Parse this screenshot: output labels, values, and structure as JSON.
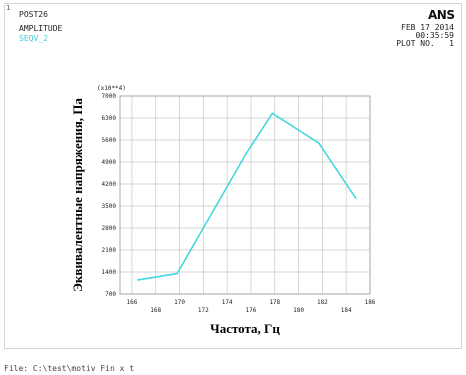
{
  "window": {
    "number": "1"
  },
  "header": {
    "program": "POST26",
    "plot_kind": "AMPLITUDE",
    "variable": "SEQV_2",
    "logo": "ANS",
    "date": "FEB 17 2014",
    "time": "00:35:59",
    "plot_no": "PLOT NO.   1"
  },
  "footer": {
    "file": "File: C:\\test\\motiv Fin x t"
  },
  "colors": {
    "series": "#47d6dd",
    "grid": "#c8c8c8",
    "text": "#222222",
    "variable": "#47c9d0"
  },
  "chart_data": {
    "type": "line",
    "title": "",
    "xlabel": "Частота, Гц",
    "ylabel": "Эквивалентные напряжения, Па",
    "y_multiplier": "(x10**4)",
    "xlim": [
      165,
      186
    ],
    "ylim": [
      700,
      7000
    ],
    "x_ticks": [
      166,
      168,
      170,
      172,
      174,
      176,
      178,
      180,
      182,
      184,
      186
    ],
    "y_ticks": [
      700,
      1400,
      2100,
      2800,
      3500,
      4200,
      4900,
      5600,
      6300,
      7000
    ],
    "grid": true,
    "series": [
      {
        "x": [
          166.5,
          169.8,
          175.6,
          177.8,
          181.7,
          184.8
        ],
        "y": [
          1150,
          1350,
          5170,
          6450,
          5500,
          3750
        ]
      }
    ]
  }
}
